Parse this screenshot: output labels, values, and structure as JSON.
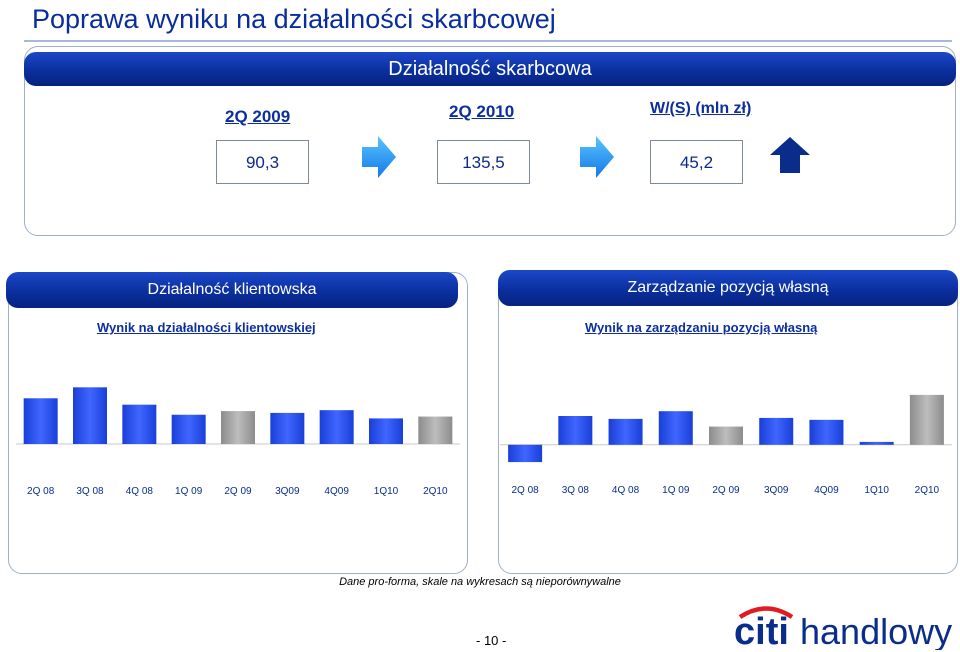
{
  "page_title": "Poprawa wyniku na działalności skarbcowej",
  "treasury": {
    "banner": "Działalność skarbcowa",
    "periods": [
      "2Q 2009",
      "2Q 2010",
      "W/(S) (mln zł)"
    ],
    "values": [
      "90,3",
      "135,5",
      "45,2"
    ],
    "icons": [
      "arrow-right-icon",
      "arrow-right-icon",
      "arrow-up-icon"
    ]
  },
  "left_panel": {
    "banner": "Działalność klientowska",
    "subtitle": "Wynik na działalności klientowskiej"
  },
  "right_panel": {
    "banner": "Zarządzanie pozycją własną",
    "subtitle": "Wynik na zarządzaniu pozycją własną"
  },
  "chart_data": [
    {
      "type": "bar",
      "categories": [
        "2Q 08",
        "3Q 08",
        "4Q 08",
        "1Q 09",
        "2Q 09",
        "3Q09",
        "4Q09",
        "1Q10",
        "2Q10"
      ],
      "values": [
        50,
        62,
        43,
        32,
        36,
        34,
        37,
        28,
        30
      ],
      "colors": [
        "#1a3fd9",
        "#1a3fd9",
        "#1a3fd9",
        "#1a3fd9",
        "#8c8c8c",
        "#1a3fd9",
        "#1a3fd9",
        "#1a3fd9",
        "#8c8c8c"
      ],
      "ylim": [
        0,
        70
      ]
    },
    {
      "type": "bar",
      "categories": [
        "2Q 08",
        "3Q 08",
        "4Q 08",
        "1Q 09",
        "2Q 09",
        "3Q09",
        "4Q09",
        "1Q10",
        "2Q10"
      ],
      "values": [
        -18,
        30,
        27,
        35,
        19,
        28,
        26,
        3,
        52
      ],
      "colors": [
        "#1a3fd9",
        "#1a3fd9",
        "#1a3fd9",
        "#1a3fd9",
        "#8c8c8c",
        "#1a3fd9",
        "#1a3fd9",
        "#1a3fd9",
        "#8c8c8c"
      ],
      "ylim": [
        -20,
        55
      ]
    }
  ],
  "footnote": "Dane pro-forma, skale na wykresach są nieporównywalne",
  "page_number": "- 10 -",
  "logo": {
    "citi": "citi",
    "handlowy": "handlowy"
  }
}
